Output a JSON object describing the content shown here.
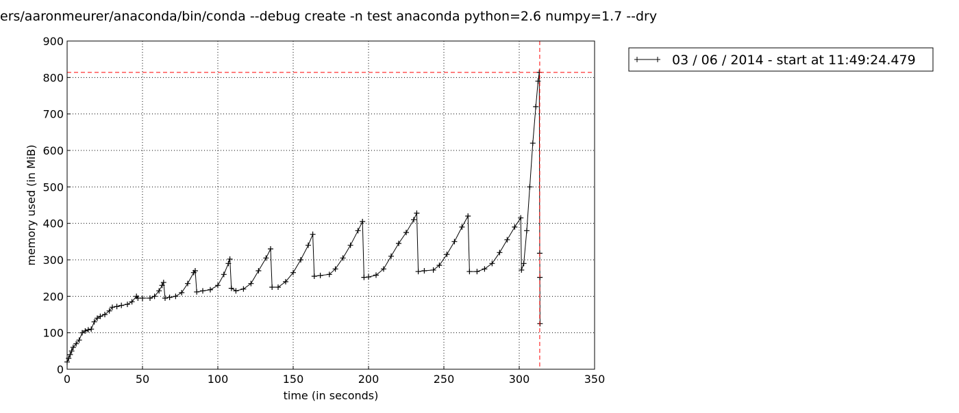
{
  "chart_data": {
    "type": "line",
    "title": "ers/aaronmeurer/anaconda/bin/conda --debug create -n test anaconda python=2.6 numpy=1.7 --dry",
    "xlabel": "time (in seconds)",
    "ylabel": "memory used (in MiB)",
    "x": [
      0,
      1,
      2,
      3,
      4,
      6,
      8,
      10,
      12,
      14,
      16,
      18,
      20,
      22,
      25,
      28,
      30,
      33,
      36,
      40,
      43,
      46,
      47,
      50,
      55,
      58,
      61,
      63,
      64,
      65,
      68,
      72,
      76,
      80,
      84,
      85,
      86,
      90,
      95,
      100,
      104,
      107,
      108,
      109,
      112,
      117,
      122,
      127,
      132,
      135,
      136,
      140,
      145,
      150,
      155,
      160,
      163,
      164,
      168,
      174,
      178,
      183,
      188,
      193,
      196,
      197,
      200,
      205,
      210,
      215,
      220,
      225,
      230,
      232,
      233,
      237,
      243,
      247,
      252,
      257,
      262,
      266,
      267,
      272,
      277,
      282,
      287,
      292,
      297,
      301,
      301.5,
      303,
      305,
      307,
      309,
      311,
      312.5,
      313.3,
      313.6,
      313.7,
      313.8
    ],
    "series": [
      {
        "name": "03 / 06 / 2014 - start at 11:49:24.479",
        "color": "#000000",
        "values": [
          20,
          30,
          40,
          50,
          60,
          70,
          80,
          100,
          105,
          108,
          110,
          130,
          140,
          145,
          150,
          160,
          170,
          172,
          175,
          178,
          185,
          200,
          195,
          195,
          195,
          200,
          215,
          230,
          238,
          195,
          197,
          200,
          210,
          235,
          265,
          270,
          212,
          215,
          218,
          230,
          260,
          290,
          302,
          222,
          215,
          220,
          235,
          270,
          305,
          330,
          225,
          225,
          240,
          265,
          300,
          340,
          370,
          255,
          257,
          260,
          275,
          305,
          340,
          380,
          405,
          252,
          253,
          258,
          275,
          310,
          345,
          375,
          410,
          428,
          268,
          270,
          272,
          285,
          315,
          350,
          390,
          420,
          268,
          268,
          275,
          290,
          320,
          355,
          390,
          415,
          272,
          290,
          380,
          500,
          620,
          720,
          790,
          814,
          318,
          252,
          125
        ]
      }
    ],
    "hline": 814,
    "vline": 313.6,
    "line_color": "#ff0000",
    "xlim": [
      0,
      350
    ],
    "ylim": [
      0,
      900
    ],
    "xticks": [
      0,
      50,
      100,
      150,
      200,
      250,
      300,
      350
    ],
    "yticks": [
      0,
      100,
      200,
      300,
      400,
      500,
      600,
      700,
      800,
      900
    ],
    "grid": true,
    "legend": "outside-upper-right"
  }
}
